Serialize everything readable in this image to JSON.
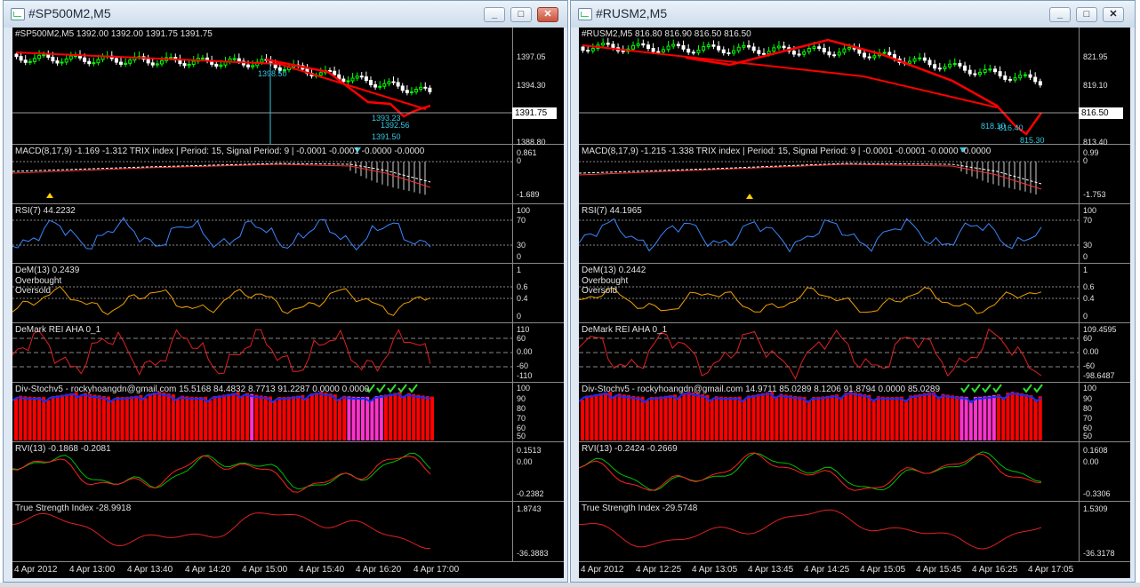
{
  "left": {
    "title": "#SP500M2,M5",
    "price_label": "#SP500M2,M5  1392.00 1392.00 1391.75 1391.75",
    "price_axis": [
      "1397.05",
      "1394.30",
      "1388.80"
    ],
    "current_price": "1391.75",
    "annotations": [
      "1398.50",
      "1393.23",
      "1392.56",
      "1391.50"
    ],
    "macd_label": "MACD(8,17,9) -1.169 -1.312  TRIX index  | Period: 15, Signal Period: 9 |  -0.0001 -0.0001 -0.0000 -0.0000",
    "macd_axis": [
      "0.861",
      "0",
      "-1.689"
    ],
    "rsi_label": "RSI(7) 44.2232",
    "rsi_axis": [
      "100",
      "70",
      "30",
      "0"
    ],
    "dem_label": "DeM(13) 0.2439",
    "dem_lines": [
      "Overbought",
      "Oversold"
    ],
    "dem_axis": [
      "1",
      "0.6",
      "0.4",
      "0"
    ],
    "rei_label": "DeMark REI AHA 0_1",
    "rei_axis": [
      "110",
      "60",
      "0.00",
      "-60",
      "-110"
    ],
    "stoch_label": "Div-Stochv5 - rockyhoangdn@gmail.com 15.5168 84.4832 8.7713 91.2287 0.0000 0.0000",
    "stoch_axis": [
      "100",
      "90",
      "80",
      "70",
      "60",
      "50"
    ],
    "rvi_label": "RVI(13) -0.1868 -0.2081",
    "rvi_axis": [
      "0.1513",
      "0.00",
      "-0.2382"
    ],
    "tsi_label": "True Strength Index -28.9918",
    "tsi_axis": [
      "1.8743",
      "-36.3883"
    ],
    "time_axis": [
      "4 Apr 2012",
      "4 Apr 13:00",
      "4 Apr 13:40",
      "4 Apr 14:20",
      "4 Apr 15:00",
      "4 Apr 15:40",
      "4 Apr 16:20",
      "4 Apr 17:00"
    ]
  },
  "right": {
    "title": "#RUSM2,M5",
    "price_label": "#RUSM2,M5  816.80 816.90 816.50 816.50",
    "price_axis": [
      "821.95",
      "819.10",
      "813.40"
    ],
    "current_price": "816.50",
    "annotations": [
      "818.10",
      "816.40",
      "815.30"
    ],
    "macd_label": "MACD(8,17,9) -1.215 -1.338  TRIX index  | Period: 15, Signal Period: 9 |  -0.0001 -0.0001 -0.0000 -0.0000",
    "macd_axis": [
      "0.99",
      "0",
      "-1.753"
    ],
    "rsi_label": "RSI(7) 44.1965",
    "rsi_axis": [
      "100",
      "70",
      "30",
      "0"
    ],
    "dem_label": "DeM(13) 0.2442",
    "dem_lines": [
      "Overbought",
      "Oversold"
    ],
    "dem_axis": [
      "1",
      "0.6",
      "0.4",
      "0"
    ],
    "rei_label": "DeMark REI AHA 0_1",
    "rei_axis": [
      "109.4595",
      "60",
      "0.00",
      "-60",
      "-98.6487"
    ],
    "stoch_label": "Div-Stochv5 - rockyhoangdn@gmail.com 14.9711 85.0289 8.1206 91.8794 0.0000 85.0289",
    "stoch_axis": [
      "100",
      "90",
      "80",
      "70",
      "60",
      "50"
    ],
    "rvi_label": "RVI(13) -0.2424 -0.2669",
    "rvi_axis": [
      "0.1608",
      "0.00",
      "-0.3306"
    ],
    "tsi_label": "True Strength Index -29.5748",
    "tsi_axis": [
      "1.5309",
      "-36.3178"
    ],
    "time_axis": [
      "4 Apr 2012",
      "4 Apr 12:25",
      "4 Apr 13:05",
      "4 Apr 13:45",
      "4 Apr 14:25",
      "4 Apr 15:05",
      "4 Apr 15:45",
      "4 Apr 16:25",
      "4 Apr 17:05"
    ]
  },
  "colors": {
    "bull": "#00ff00",
    "bear": "#ff0000",
    "rsi": "#3b86ff",
    "dem": "#f0a000",
    "stoch_bar": "#ff0000",
    "stoch_highlight": "#ff33cc",
    "stoch_line": "#1030ff",
    "annotation": "#33c7e0"
  }
}
